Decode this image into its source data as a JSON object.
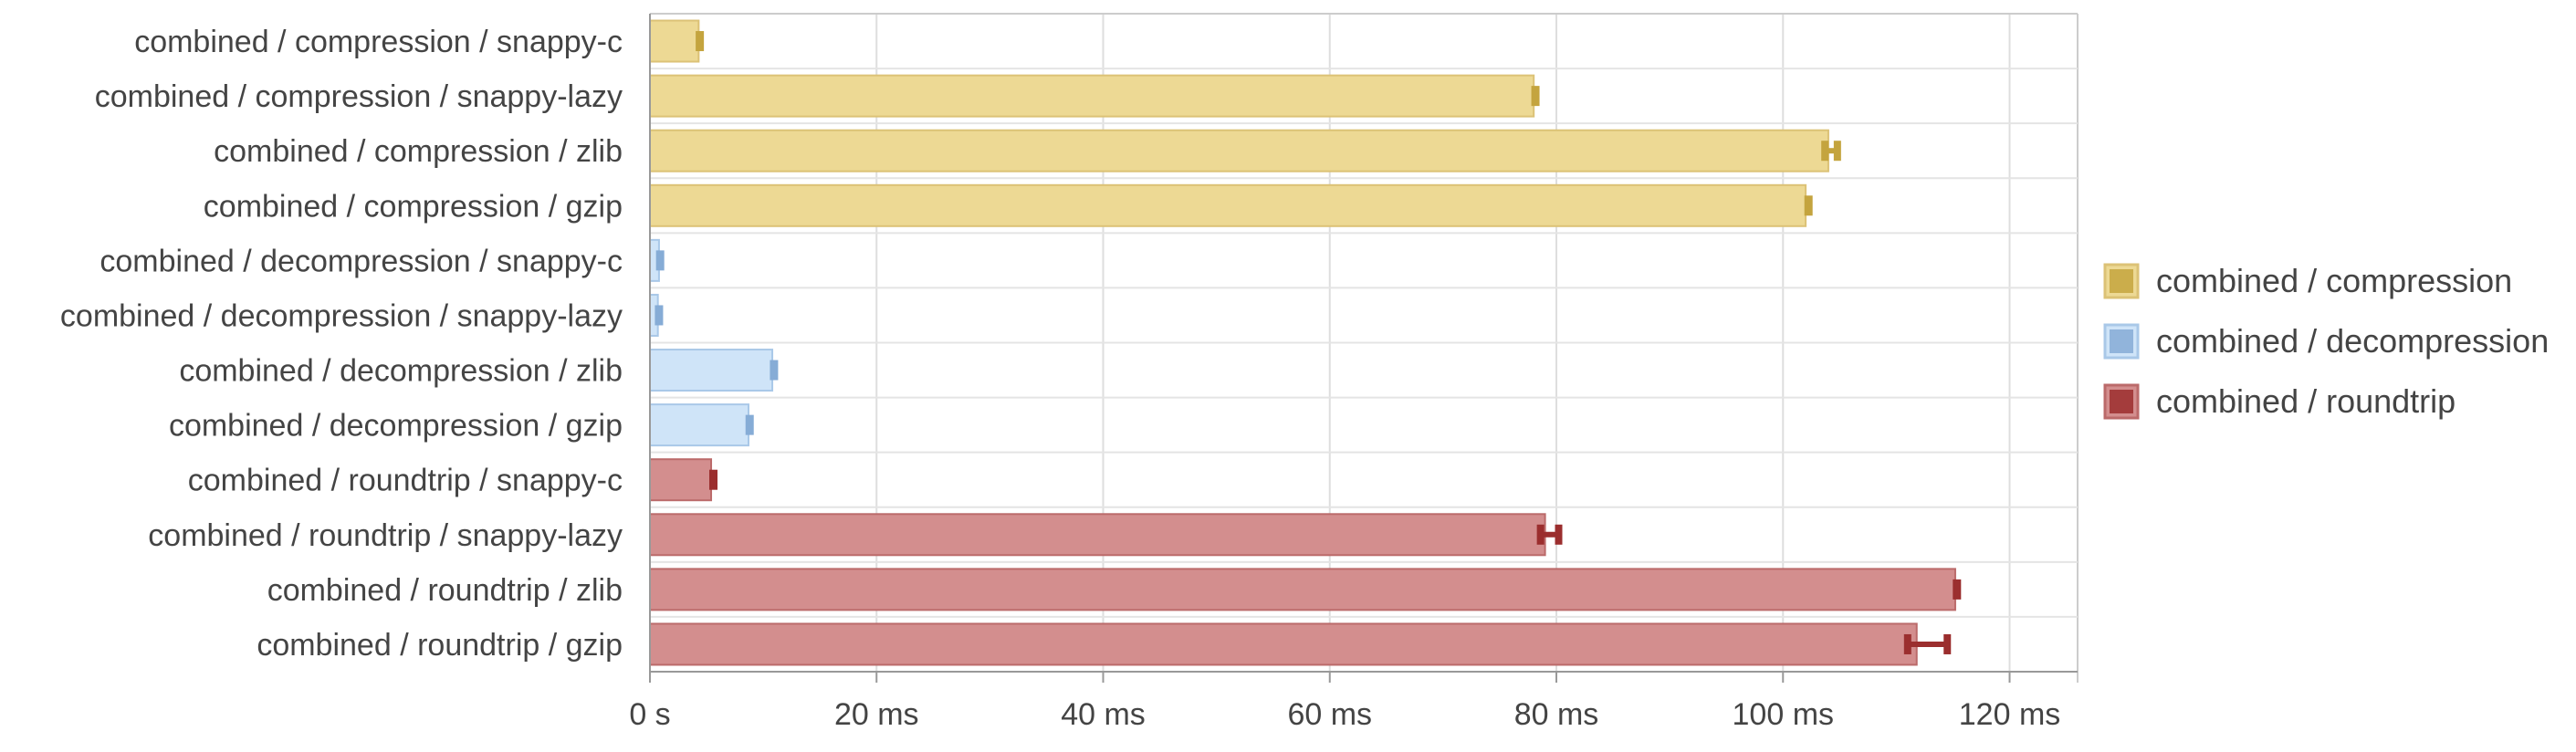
{
  "chart_data": {
    "type": "bar",
    "orientation": "horizontal",
    "title": "",
    "xlabel": "",
    "ylabel": "",
    "xlim": [
      0,
      126
    ],
    "x_ticks": [
      0,
      20,
      40,
      60,
      80,
      100,
      120
    ],
    "x_tick_labels": [
      "0 s",
      "20 ms",
      "40 ms",
      "60 ms",
      "80 ms",
      "100 ms",
      "120 ms"
    ],
    "grid": true,
    "legend_position": "right",
    "categories": [
      "combined / compression / snappy-c",
      "combined / compression / snappy-lazy",
      "combined / compression / zlib",
      "combined / compression / gzip",
      "combined / decompression / snappy-c",
      "combined / decompression / snappy-lazy",
      "combined / decompression / zlib",
      "combined / decompression / gzip",
      "combined / roundtrip / snappy-c",
      "combined / roundtrip / snappy-lazy",
      "combined / roundtrip / zlib",
      "combined / roundtrip / gzip"
    ],
    "series": [
      {
        "name": "combined / compression",
        "fill": "#edd994",
        "stroke": "#dcc276",
        "error_color": "#c4a43e",
        "items": [
          {
            "category": "combined / compression / snappy-c",
            "value": 4.3,
            "error": [
              4.2,
              4.6
            ]
          },
          {
            "category": "combined / compression / snappy-lazy",
            "value": 78.0,
            "error": [
              77.8,
              78.5
            ]
          },
          {
            "category": "combined / compression / zlib",
            "value": 104.0,
            "error": [
              103.7,
              104.8
            ]
          },
          {
            "category": "combined / compression / gzip",
            "value": 102.0,
            "error": [
              101.9,
              102.6
            ]
          }
        ]
      },
      {
        "name": "combined / decompression",
        "fill": "#cfe4f8",
        "stroke": "#a9c8e8",
        "error_color": "#86acd6",
        "items": [
          {
            "category": "combined / decompression / snappy-c",
            "value": 0.8,
            "error": [
              0.7,
              1.1
            ]
          },
          {
            "category": "combined / decompression / snappy-lazy",
            "value": 0.7,
            "error": [
              0.6,
              1.0
            ]
          },
          {
            "category": "combined / decompression / zlib",
            "value": 10.8,
            "error": [
              10.7,
              11.2
            ]
          },
          {
            "category": "combined / decompression / gzip",
            "value": 8.7,
            "error": [
              8.6,
              9.0
            ]
          }
        ]
      },
      {
        "name": "combined / roundtrip",
        "fill": "#d38e8e",
        "stroke": "#bb6a6a",
        "error_color": "#9b2e2e",
        "items": [
          {
            "category": "combined / roundtrip / snappy-c",
            "value": 5.4,
            "error": [
              5.3,
              5.9
            ]
          },
          {
            "category": "combined / roundtrip / snappy-lazy",
            "value": 79.0,
            "error": [
              78.6,
              80.2
            ]
          },
          {
            "category": "combined / roundtrip / zlib",
            "value": 115.2,
            "error": [
              115.0,
              115.7
            ]
          },
          {
            "category": "combined / roundtrip / gzip",
            "value": 111.8,
            "error": [
              111.0,
              114.5
            ]
          }
        ]
      }
    ]
  }
}
